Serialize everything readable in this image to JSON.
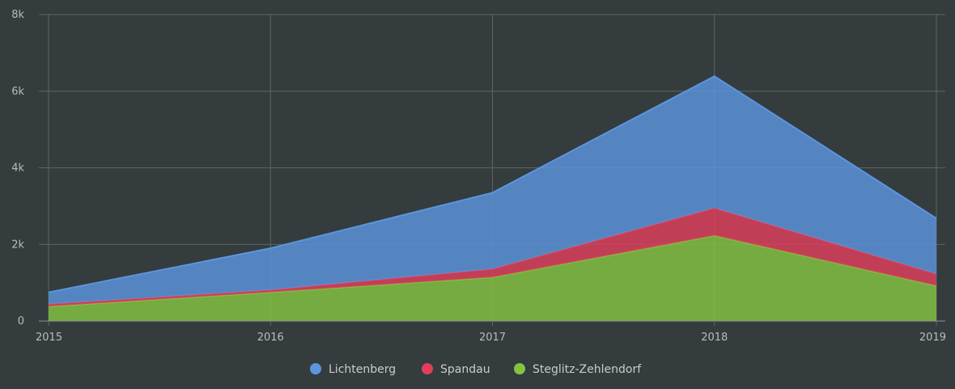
{
  "colors": {
    "background": "#343c3e",
    "grid": "#5d6663",
    "axis": "#8a9090"
  },
  "chart_data": {
    "type": "area",
    "stacked": true,
    "x": [
      "2015",
      "2016",
      "2017",
      "2018",
      "2019"
    ],
    "series": [
      {
        "name": "Lichtenberg",
        "color": "#5b95de",
        "values": [
          310,
          1090,
          1990,
          3440,
          1450
        ]
      },
      {
        "name": "Spandau",
        "color": "#e03f5b",
        "values": [
          60,
          60,
          220,
          720,
          310
        ]
      },
      {
        "name": "Steglitz-Zehlendorf",
        "color": "#84c341",
        "values": [
          380,
          750,
          1140,
          2230,
          920
        ]
      }
    ],
    "ylim": [
      0,
      8000
    ],
    "y_ticks": [
      {
        "value": 0,
        "label": "0"
      },
      {
        "value": 2000,
        "label": "2k"
      },
      {
        "value": 4000,
        "label": "4k"
      },
      {
        "value": 6000,
        "label": "6k"
      },
      {
        "value": 8000,
        "label": "8k"
      }
    ],
    "grid": true,
    "legend_position": "bottom-center"
  }
}
